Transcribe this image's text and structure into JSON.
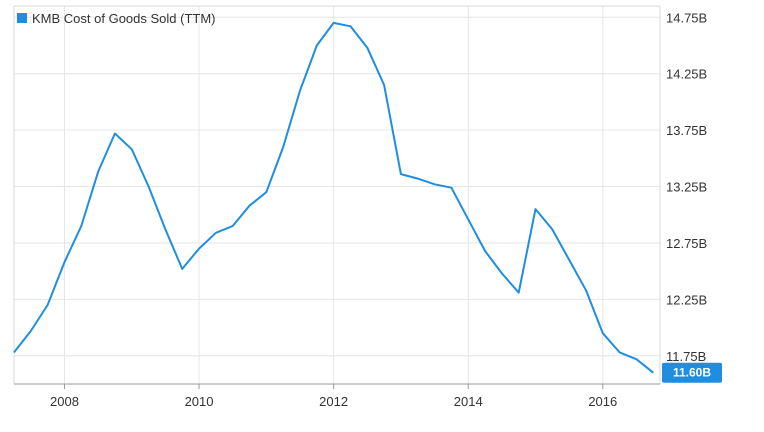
{
  "chart_data": {
    "type": "line",
    "legend": {
      "label": "KMB Cost of Goods Sold (TTM)",
      "position": "top-left"
    },
    "series": [
      {
        "name": "KMB Cost of Goods Sold (TTM)",
        "color": "#1f8ee0",
        "points": [
          {
            "x": 2007.25,
            "y": 11.78
          },
          {
            "x": 2007.5,
            "y": 11.97
          },
          {
            "x": 2007.75,
            "y": 12.2
          },
          {
            "x": 2008.0,
            "y": 12.58
          },
          {
            "x": 2008.25,
            "y": 12.9
          },
          {
            "x": 2008.5,
            "y": 13.38
          },
          {
            "x": 2008.75,
            "y": 13.72
          },
          {
            "x": 2009.0,
            "y": 13.58
          },
          {
            "x": 2009.25,
            "y": 13.25
          },
          {
            "x": 2009.5,
            "y": 12.87
          },
          {
            "x": 2009.75,
            "y": 12.52
          },
          {
            "x": 2010.0,
            "y": 12.7
          },
          {
            "x": 2010.25,
            "y": 12.84
          },
          {
            "x": 2010.5,
            "y": 12.9
          },
          {
            "x": 2010.75,
            "y": 13.08
          },
          {
            "x": 2011.0,
            "y": 13.2
          },
          {
            "x": 2011.25,
            "y": 13.6
          },
          {
            "x": 2011.5,
            "y": 14.1
          },
          {
            "x": 2011.75,
            "y": 14.5
          },
          {
            "x": 2012.0,
            "y": 14.7
          },
          {
            "x": 2012.25,
            "y": 14.67
          },
          {
            "x": 2012.5,
            "y": 14.48
          },
          {
            "x": 2012.75,
            "y": 14.15
          },
          {
            "x": 2013.0,
            "y": 13.36
          },
          {
            "x": 2013.25,
            "y": 13.32
          },
          {
            "x": 2013.5,
            "y": 13.27
          },
          {
            "x": 2013.75,
            "y": 13.24
          },
          {
            "x": 2014.0,
            "y": 12.96
          },
          {
            "x": 2014.25,
            "y": 12.68
          },
          {
            "x": 2014.5,
            "y": 12.48
          },
          {
            "x": 2014.75,
            "y": 12.31
          },
          {
            "x": 2015.0,
            "y": 13.05
          },
          {
            "x": 2015.25,
            "y": 12.87
          },
          {
            "x": 2015.5,
            "y": 12.6
          },
          {
            "x": 2015.75,
            "y": 12.33
          },
          {
            "x": 2016.0,
            "y": 11.95
          },
          {
            "x": 2016.25,
            "y": 11.78
          },
          {
            "x": 2016.5,
            "y": 11.72
          },
          {
            "x": 2016.75,
            "y": 11.6
          }
        ]
      }
    ],
    "x_ticks": [
      {
        "value": 2008,
        "label": "2008"
      },
      {
        "value": 2010,
        "label": "2010"
      },
      {
        "value": 2012,
        "label": "2012"
      },
      {
        "value": 2014,
        "label": "2014"
      },
      {
        "value": 2016,
        "label": "2016"
      }
    ],
    "y_ticks": [
      {
        "value": 11.75,
        "label": "11.75B"
      },
      {
        "value": 12.25,
        "label": "12.25B"
      },
      {
        "value": 12.75,
        "label": "12.75B"
      },
      {
        "value": 13.25,
        "label": "13.25B"
      },
      {
        "value": 13.75,
        "label": "13.75B"
      },
      {
        "value": 14.25,
        "label": "14.25B"
      },
      {
        "value": 14.75,
        "label": "14.75B"
      }
    ],
    "xlim": [
      2007.25,
      2016.85
    ],
    "ylim": [
      11.5,
      14.85
    ],
    "grid": true,
    "last_value": {
      "value": 11.6,
      "label": "11.60B"
    }
  }
}
